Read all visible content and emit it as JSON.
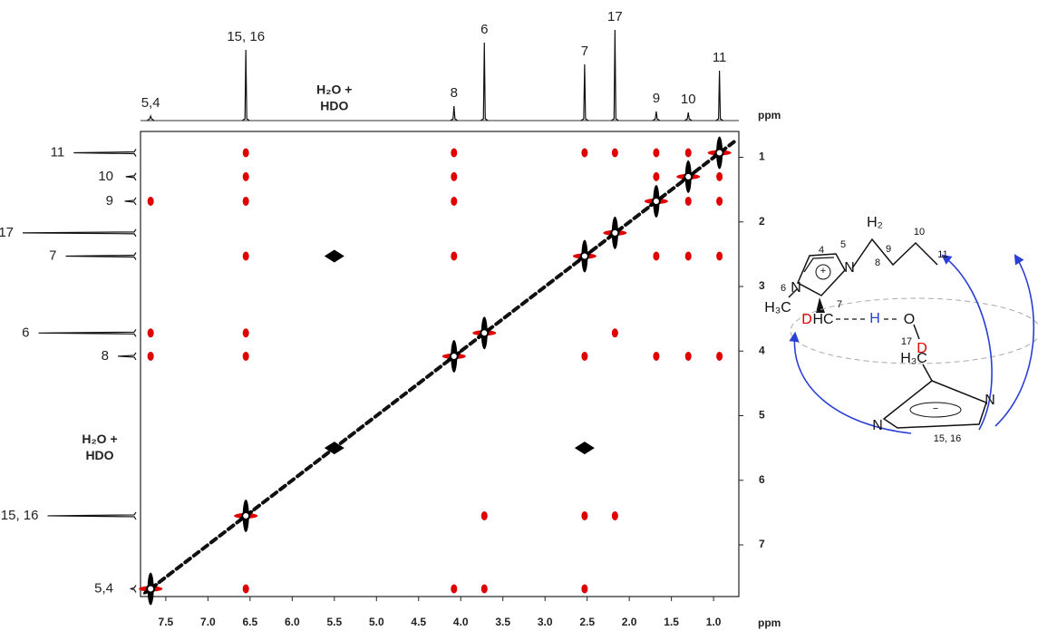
{
  "chart_data": {
    "type": "noesy",
    "x_label": "ppm",
    "y_label": "ppm",
    "xlim": [
      7.8,
      0.7
    ],
    "ylim": [
      0.6,
      7.8
    ],
    "xticks": [
      7.5,
      {
        "value": 7,
        "label": "7.0"
      },
      6.5,
      {
        "value": 6,
        "label": "6.0"
      },
      5.5,
      {
        "value": 5,
        "label": "5.0"
      },
      4.5,
      {
        "value": 4,
        "label": "4.0"
      },
      3.5,
      {
        "value": 3,
        "label": "3.0"
      },
      2.5,
      {
        "value": 2,
        "label": "2.0"
      },
      1.5,
      {
        "value": 1,
        "label": "1.0"
      }
    ],
    "yticks": [
      1,
      2,
      3,
      4,
      5,
      6,
      7
    ],
    "projection": {
      "labels": [
        "5,4",
        "15, 16",
        "8",
        "6",
        "7",
        "17",
        "9",
        "10",
        "11"
      ],
      "ppm": [
        7.68,
        6.55,
        4.08,
        3.72,
        2.53,
        2.17,
        1.68,
        1.3,
        0.93
      ],
      "intensity": [
        5,
        78,
        16,
        86,
        62,
        100,
        10,
        9,
        55
      ]
    },
    "solvent": {
      "lines": [
        "H₂O +",
        "HDO"
      ],
      "ppm": 5.5
    },
    "peaks": [
      {
        "shape": "cross",
        "color": "#000000",
        "accent": "#e00000",
        "x": [
          0.93,
          1.3,
          1.68,
          2.17,
          2.53,
          3.72,
          4.08,
          6.55,
          7.68
        ],
        "y": [
          0.93,
          1.3,
          1.68,
          2.17,
          2.53,
          3.72,
          4.08,
          6.55,
          7.68
        ]
      },
      {
        "shape": "diamond",
        "color": "#000000",
        "x": [
          5.5,
          5.5,
          2.53
        ],
        "y": [
          2.53,
          5.5,
          5.5
        ]
      },
      {
        "shape": "spot",
        "color": "#e00000",
        "x": [
          0.93,
          0.93,
          0.93,
          0.93,
          1.3,
          1.3,
          1.3,
          1.3,
          1.68,
          1.68,
          1.68,
          1.68,
          2.17,
          2.17,
          2.17,
          2.53,
          2.53,
          2.53,
          2.53,
          3.72,
          3.72,
          4.08,
          4.08,
          4.08,
          4.08,
          4.08,
          6.55,
          6.55,
          6.55,
          6.55,
          6.55,
          6.55,
          6.55,
          7.68,
          7.68,
          7.68
        ],
        "y": [
          1.3,
          1.68,
          2.53,
          4.08,
          0.93,
          1.68,
          2.53,
          4.08,
          0.93,
          1.3,
          2.53,
          4.08,
          0.93,
          3.72,
          6.55,
          0.93,
          4.08,
          6.55,
          7.68,
          6.55,
          7.68,
          0.93,
          1.3,
          1.68,
          2.53,
          7.68,
          0.93,
          1.3,
          1.68,
          2.53,
          3.72,
          4.08,
          7.68,
          1.68,
          3.72,
          4.08
        ]
      }
    ]
  },
  "structure": {
    "labels": [
      "4",
      "5",
      "+",
      "N",
      "N",
      "6",
      "H₃C",
      "7",
      "D",
      "HC",
      "H",
      "O",
      "D",
      "H₂",
      "C",
      "8",
      "9",
      "10",
      "11",
      "17",
      "H₃C",
      "N",
      "N",
      "−",
      "15, 16"
    ]
  }
}
